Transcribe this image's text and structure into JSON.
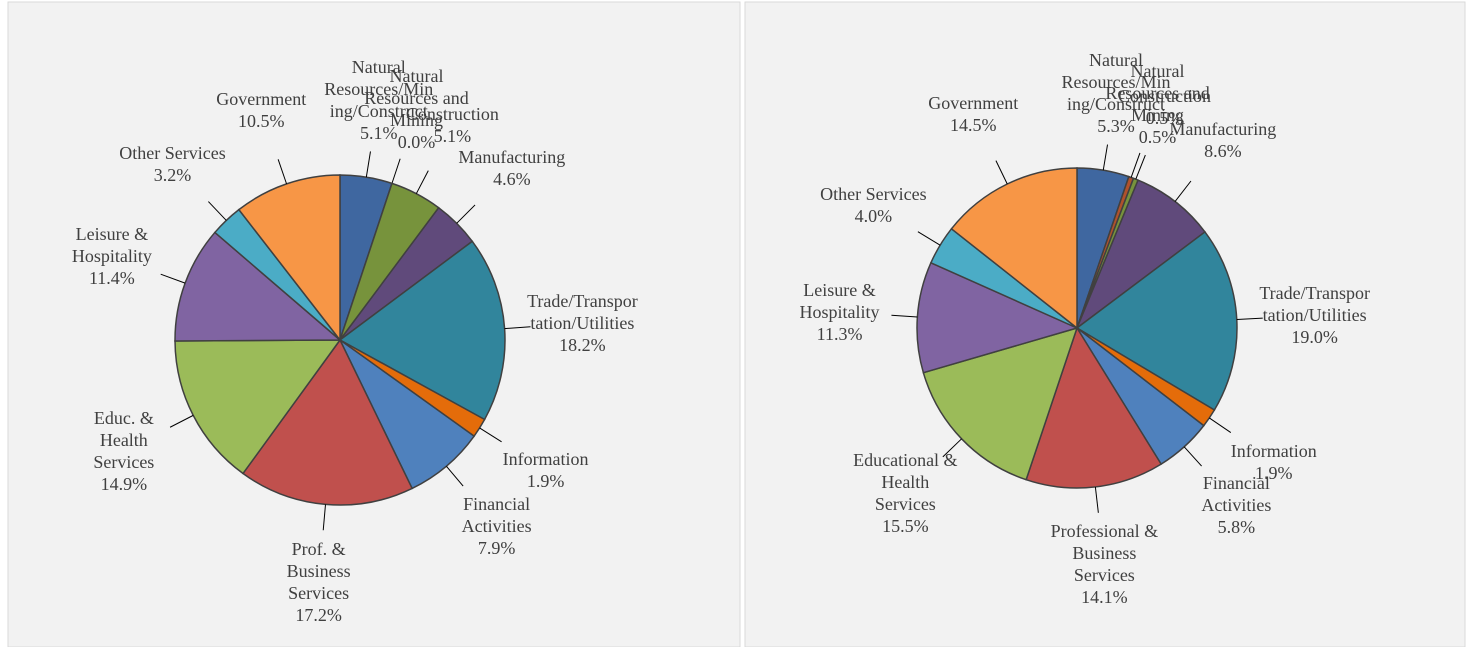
{
  "chart_data": [
    {
      "type": "pie",
      "categories": [
        "Natural Resources/Mining/Construct",
        "Natural Resources and Mining",
        "Construction",
        "Manufacturing",
        "Trade/Transportation/Utilities",
        "Information",
        "Financial Activities",
        "Prof. & Business Services",
        "Educ. & Health Services",
        "Leisure & Hospitality",
        "Other Services",
        "Government"
      ],
      "values": [
        5.1,
        0.0,
        5.1,
        4.6,
        18.2,
        1.9,
        7.9,
        17.2,
        14.9,
        11.4,
        3.2,
        10.5
      ],
      "value_labels": [
        "5.1%",
        "0.0%",
        "5.1%",
        "4.6%",
        "18.2%",
        "1.9%",
        "7.9%",
        "17.2%",
        "14.9%",
        "11.4%",
        "3.2%",
        "10.5%"
      ],
      "colors": [
        "#3f67a0",
        "#b0512c",
        "#77933c",
        "#604a7b",
        "#31859c",
        "#e46c0a",
        "#4f81bd",
        "#c0504d",
        "#9bbb59",
        "#8064a2",
        "#4bacc6",
        "#f79646"
      ]
    },
    {
      "type": "pie",
      "categories": [
        "Natural Resources/Mining/Construct",
        "Natural Resources and Mining",
        "Construction",
        "Manufacturing",
        "Trade/Transportation/Utilities",
        "Information",
        "Financial Activities",
        "Professional & Business Services",
        "Educational & Health Services",
        "Leisure & Hospitality",
        "Other Services",
        "Government"
      ],
      "values": [
        5.3,
        0.5,
        0.5,
        8.6,
        19.0,
        1.9,
        5.8,
        14.1,
        15.5,
        11.3,
        4.0,
        14.5
      ],
      "value_labels": [
        "5.3%",
        "0.5%",
        "0.5%",
        "8.6%",
        "19.0%",
        "1.9%",
        "5.8%",
        "14.1%",
        "15.5%",
        "11.3%",
        "4.0%",
        "14.5%"
      ],
      "colors": [
        "#3f67a0",
        "#b0512c",
        "#77933c",
        "#604a7b",
        "#31859c",
        "#e46c0a",
        "#4f81bd",
        "#c0504d",
        "#9bbb59",
        "#8064a2",
        "#4bacc6",
        "#f79646"
      ]
    }
  ]
}
